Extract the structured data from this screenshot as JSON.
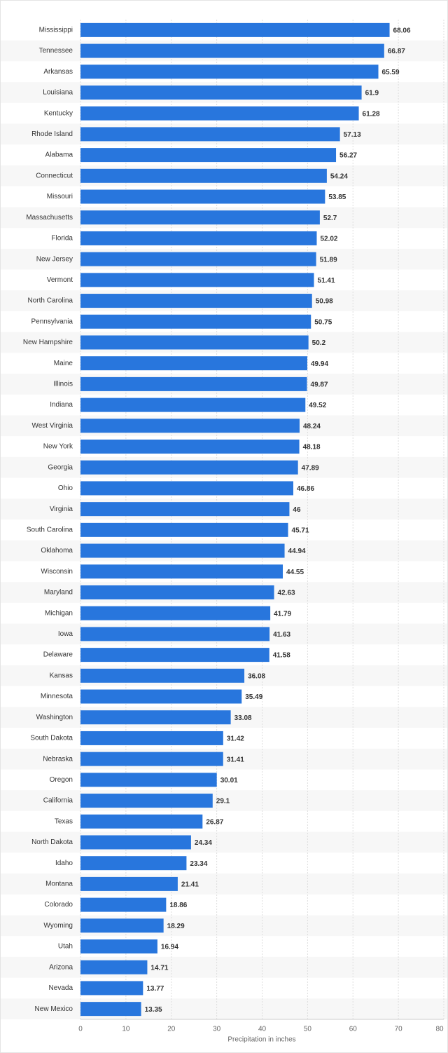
{
  "chart_data": {
    "type": "bar",
    "orientation": "horizontal",
    "x_label": "Precipitation in inches",
    "categories": [
      "Mississippi",
      "Tennessee",
      "Arkansas",
      "Louisiana",
      "Kentucky",
      "Rhode Island",
      "Alabama",
      "Connecticut",
      "Missouri",
      "Massachusetts",
      "Florida",
      "New Jersey",
      "Vermont",
      "North Carolina",
      "Pennsylvania",
      "New Hampshire",
      "Maine",
      "Illinois",
      "Indiana",
      "West Virginia",
      "New York",
      "Georgia",
      "Ohio",
      "Virginia",
      "South Carolina",
      "Oklahoma",
      "Wisconsin",
      "Maryland",
      "Michigan",
      "Iowa",
      "Delaware",
      "Kansas",
      "Minnesota",
      "Washington",
      "South Dakota",
      "Nebraska",
      "Oregon",
      "California",
      "Texas",
      "North Dakota",
      "Idaho",
      "Montana",
      "Colorado",
      "Wyoming",
      "Utah",
      "Arizona",
      "Nevada",
      "New Mexico"
    ],
    "values": [
      68.06,
      66.87,
      65.59,
      61.9,
      61.28,
      57.13,
      56.27,
      54.24,
      53.85,
      52.7,
      52.02,
      51.89,
      51.41,
      50.98,
      50.75,
      50.2,
      49.94,
      49.87,
      49.52,
      48.24,
      48.18,
      47.89,
      46.86,
      46,
      45.71,
      44.94,
      44.55,
      42.63,
      41.79,
      41.63,
      41.58,
      36.08,
      35.49,
      33.08,
      31.42,
      31.41,
      30.01,
      29.1,
      26.87,
      24.34,
      23.34,
      21.41,
      18.86,
      18.29,
      16.94,
      14.71,
      13.77,
      13.35
    ],
    "color": "#2876dd",
    "xlim": [
      0,
      80
    ],
    "xticks": [
      0,
      10,
      20,
      30,
      40,
      50,
      60,
      70,
      80
    ],
    "grid": true
  }
}
